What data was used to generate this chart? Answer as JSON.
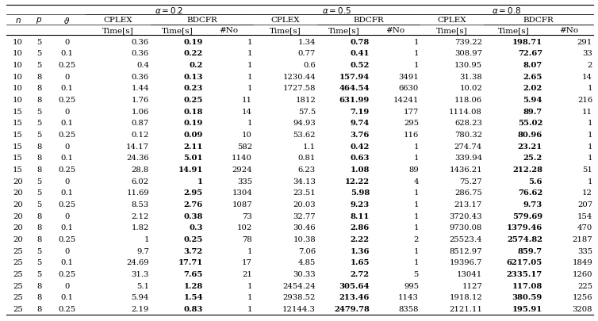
{
  "rows": [
    [
      "10",
      "5",
      "0",
      "0.36",
      "0.19",
      "1",
      "1.34",
      "0.78",
      "1",
      "739.22",
      "198.71",
      "291"
    ],
    [
      "10",
      "5",
      "0.1",
      "0.36",
      "0.22",
      "1",
      "0.77",
      "0.41",
      "1",
      "308.97",
      "72.67",
      "33"
    ],
    [
      "10",
      "5",
      "0.25",
      "0.4",
      "0.2",
      "1",
      "0.6",
      "0.52",
      "1",
      "130.95",
      "8.07",
      "2"
    ],
    [
      "10",
      "8",
      "0",
      "0.36",
      "0.13",
      "1",
      "1230.44",
      "157.94",
      "3491",
      "31.38",
      "2.65",
      "14"
    ],
    [
      "10",
      "8",
      "0.1",
      "1.44",
      "0.23",
      "1",
      "1727.58",
      "464.54",
      "6630",
      "10.02",
      "2.02",
      "1"
    ],
    [
      "10",
      "8",
      "0.25",
      "1.76",
      "0.25",
      "11",
      "1812",
      "631.99",
      "14241",
      "118.06",
      "5.94",
      "216"
    ],
    [
      "15",
      "5",
      "0",
      "1.06",
      "0.18",
      "14",
      "57.5",
      "7.19",
      "177",
      "1114.08",
      "89.7",
      "11"
    ],
    [
      "15",
      "5",
      "0.1",
      "0.87",
      "0.19",
      "1",
      "94.93",
      "9.74",
      "295",
      "628.23",
      "55.02",
      "1"
    ],
    [
      "15",
      "5",
      "0.25",
      "0.12",
      "0.09",
      "10",
      "53.62",
      "3.76",
      "116",
      "780.32",
      "80.96",
      "1"
    ],
    [
      "15",
      "8",
      "0",
      "14.17",
      "2.11",
      "582",
      "1.1",
      "0.42",
      "1",
      "274.74",
      "23.21",
      "1"
    ],
    [
      "15",
      "8",
      "0.1",
      "24.36",
      "5.01",
      "1140",
      "0.81",
      "0.63",
      "1",
      "339.94",
      "25.2",
      "1"
    ],
    [
      "15",
      "8",
      "0.25",
      "28.8",
      "14.91",
      "2924",
      "6.23",
      "1.08",
      "89",
      "1436.21",
      "212.28",
      "51"
    ],
    [
      "20",
      "5",
      "0",
      "6.02",
      "1",
      "335",
      "34.13",
      "12.22",
      "4",
      "75.27",
      "5.6",
      "1"
    ],
    [
      "20",
      "5",
      "0.1",
      "11.69",
      "2.95",
      "1304",
      "23.51",
      "5.98",
      "1",
      "286.75",
      "76.62",
      "12"
    ],
    [
      "20",
      "5",
      "0.25",
      "8.53",
      "2.76",
      "1087",
      "20.03",
      "9.23",
      "1",
      "213.17",
      "9.73",
      "207"
    ],
    [
      "20",
      "8",
      "0",
      "2.12",
      "0.38",
      "73",
      "32.77",
      "8.11",
      "1",
      "3720.43",
      "579.69",
      "154"
    ],
    [
      "20",
      "8",
      "0.1",
      "1.82",
      "0.3",
      "102",
      "30.46",
      "2.86",
      "1",
      "9730.08",
      "1379.46",
      "470"
    ],
    [
      "20",
      "8",
      "0.25",
      "1",
      "0.25",
      "78",
      "10.38",
      "2.22",
      "2",
      "25523.4",
      "2574.82",
      "2187"
    ],
    [
      "25",
      "5",
      "0",
      "9.7",
      "3.72",
      "1",
      "7.06",
      "1.36",
      "1",
      "8512.97",
      "859.7",
      "335"
    ],
    [
      "25",
      "5",
      "0.1",
      "24.69",
      "17.71",
      "17",
      "4.85",
      "1.65",
      "1",
      "19396.7",
      "6217.05",
      "1849"
    ],
    [
      "25",
      "5",
      "0.25",
      "31.3",
      "7.65",
      "21",
      "30.33",
      "2.72",
      "5",
      "13041",
      "2335.17",
      "1260"
    ],
    [
      "25",
      "8",
      "0",
      "5.1",
      "1.28",
      "1",
      "2454.24",
      "305.64",
      "995",
      "1127",
      "117.08",
      "225"
    ],
    [
      "25",
      "8",
      "0.1",
      "5.94",
      "1.54",
      "1",
      "2938.52",
      "213.46",
      "1143",
      "1918.12",
      "380.59",
      "1256"
    ],
    [
      "25",
      "8",
      "0.25",
      "2.19",
      "0.83",
      "1",
      "12144.3",
      "2479.78",
      "8358",
      "2121.11",
      "195.91",
      "3208"
    ]
  ],
  "bold_cols": [
    4,
    7,
    10
  ],
  "figsize": [
    7.54,
    4.06
  ],
  "dpi": 100
}
